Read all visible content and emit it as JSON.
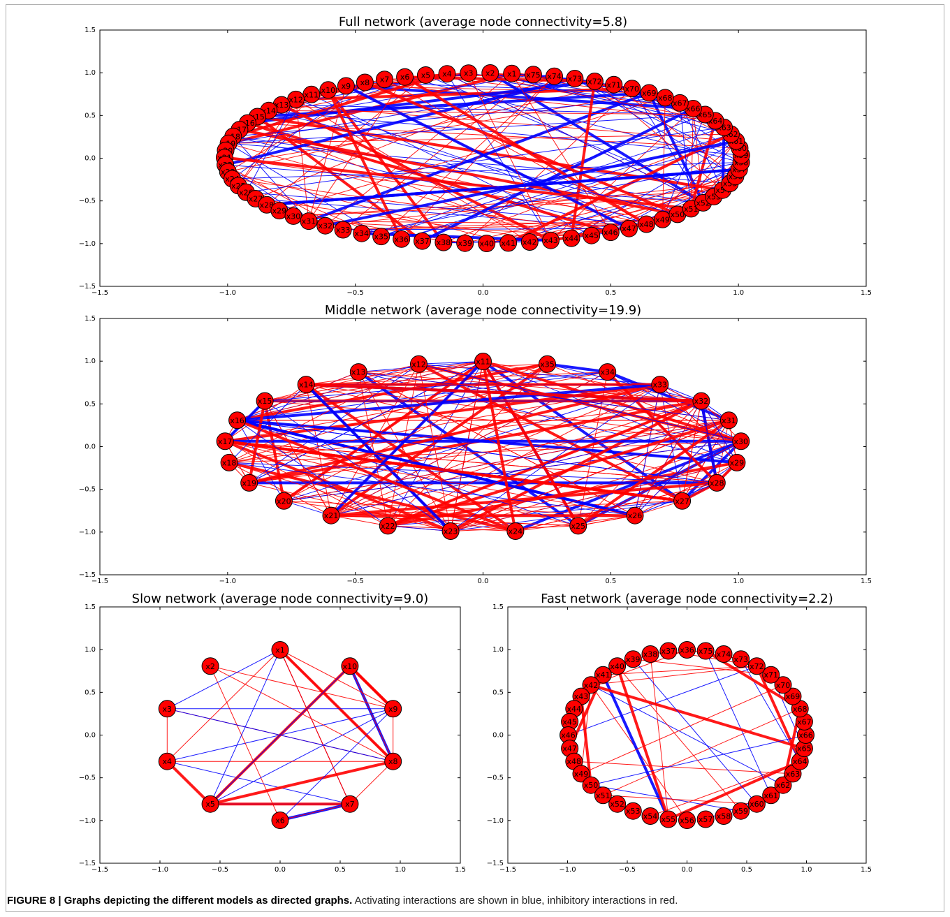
{
  "figure": {
    "caption_bold": "FIGURE 8 | Graphs depicting the different models as directed graphs.",
    "caption_rest": " Activating interactions are shown in blue, inhibitory interactions in red."
  },
  "colors": {
    "activating": "#0000ff",
    "inhibitory": "#ff0000",
    "node_fill": "#ff0000",
    "node_stroke": "#000000"
  },
  "chart_data": [
    {
      "type": "network",
      "title": "Full network (average node connectivity=5.8)",
      "xlim": [
        -1.5,
        1.5
      ],
      "ylim": [
        -1.5,
        1.5
      ],
      "x_ticks": [
        "−1.5",
        "−1.0",
        "−0.5",
        "0.0",
        "0.5",
        "1.0",
        "1.5"
      ],
      "y_ticks": [
        "1.5",
        "1.0",
        "0.5",
        "0.0",
        "−0.5",
        "−1.0",
        "−1.5"
      ],
      "nodes": [
        "x1",
        "x2",
        "x3",
        "x4",
        "x5",
        "x6",
        "x7",
        "x8",
        "x9",
        "x10",
        "x11",
        "x12",
        "x13",
        "x14",
        "x15",
        "x16",
        "x17",
        "x18",
        "x19",
        "x20",
        "x21",
        "x22",
        "x23",
        "x24",
        "x25",
        "x26",
        "x27",
        "x28",
        "x29",
        "x30",
        "x31",
        "x32",
        "x33",
        "x34",
        "x35",
        "x36",
        "x37",
        "x38",
        "x39",
        "x40",
        "x41",
        "x42",
        "x43",
        "x44",
        "x45",
        "x46",
        "x47",
        "x48",
        "x49",
        "x50",
        "x51",
        "x52",
        "x53",
        "x54",
        "x55",
        "x56",
        "x57",
        "x58",
        "x59",
        "x60",
        "x61",
        "x62",
        "x63",
        "x64",
        "x65",
        "x66",
        "x67",
        "x68",
        "x69",
        "x70",
        "x71",
        "x72",
        "x73",
        "x74",
        "x75"
      ],
      "layout": "circular",
      "average_node_connectivity": 5.8
    },
    {
      "type": "network",
      "title": "Middle network (average node connectivity=19.9)",
      "xlim": [
        -1.5,
        1.5
      ],
      "ylim": [
        -1.5,
        1.5
      ],
      "x_ticks": [
        "−1.5",
        "−1.0",
        "−0.5",
        "0.0",
        "0.5",
        "1.0",
        "1.5"
      ],
      "y_ticks": [
        "1.5",
        "1.0",
        "0.5",
        "0.0",
        "−0.5",
        "−1.0",
        "−1.5"
      ],
      "nodes": [
        "x11",
        "x12",
        "x13",
        "x14",
        "x15",
        "x16",
        "x17",
        "x18",
        "x19",
        "x20",
        "x21",
        "x22",
        "x23",
        "x24",
        "x25",
        "x26",
        "x27",
        "x28",
        "x29",
        "x30",
        "x31",
        "x32",
        "x33",
        "x34",
        "x35"
      ],
      "layout": "circular",
      "average_node_connectivity": 19.9
    },
    {
      "type": "network",
      "title": "Slow network (average node connectivity=9.0)",
      "xlim": [
        -1.5,
        1.5
      ],
      "ylim": [
        -1.5,
        1.5
      ],
      "x_ticks": [
        "−1.5",
        "−1.0",
        "−0.5",
        "0.0",
        "0.5",
        "1.0",
        "1.5"
      ],
      "y_ticks": [
        "1.5",
        "1.0",
        "0.5",
        "0.0",
        "−0.5",
        "−1.0",
        "−1.5"
      ],
      "nodes": [
        "x1",
        "x2",
        "x3",
        "x4",
        "x5",
        "x6",
        "x7",
        "x8",
        "x9",
        "x10"
      ],
      "layout": "circular",
      "average_node_connectivity": 9.0
    },
    {
      "type": "network",
      "title": "Fast network (average node connectivity=2.2)",
      "xlim": [
        -1.5,
        1.5
      ],
      "ylim": [
        -1.5,
        1.5
      ],
      "x_ticks": [
        "−1.5",
        "−1.0",
        "−0.5",
        "0.0",
        "0.5",
        "1.0",
        "1.5"
      ],
      "y_ticks": [
        "1.5",
        "1.0",
        "0.5",
        "0.0",
        "−0.5",
        "−1.0",
        "−1.5"
      ],
      "nodes": [
        "x36",
        "x37",
        "x38",
        "x39",
        "x40",
        "x41",
        "x42",
        "x43",
        "x44",
        "x45",
        "x46",
        "x47",
        "x48",
        "x49",
        "x50",
        "x51",
        "x52",
        "x53",
        "x54",
        "x55",
        "x56",
        "x57",
        "x58",
        "x59",
        "x60",
        "x61",
        "x62",
        "x63",
        "x64",
        "x65",
        "x66",
        "x67",
        "x68",
        "x69",
        "x70",
        "x71",
        "x72",
        "x73",
        "x74",
        "x75"
      ],
      "layout": "circular",
      "average_node_connectivity": 2.2
    }
  ]
}
